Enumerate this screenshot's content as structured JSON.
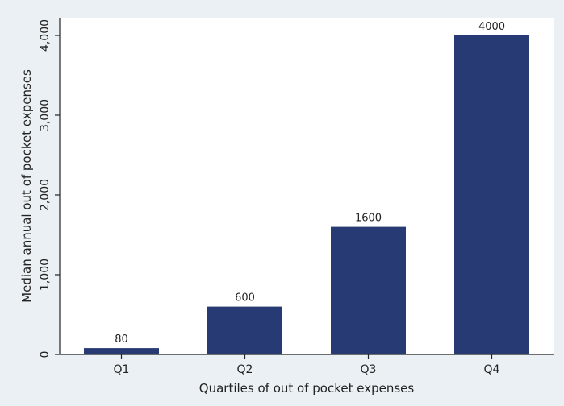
{
  "chart_data": {
    "type": "bar",
    "categories": [
      "Q1",
      "Q2",
      "Q3",
      "Q4"
    ],
    "values": [
      80,
      600,
      1600,
      4000
    ],
    "data_labels": [
      "80",
      "600",
      "1600",
      "4000"
    ],
    "xlabel": "Quartiles of out of pocket expenses",
    "ylabel": "Median annual out of pocket expenses",
    "ylim": [
      0,
      4000
    ],
    "yticks": [
      0,
      1000,
      2000,
      3000,
      4000
    ],
    "ytick_labels": [
      "0",
      "1,000",
      "2,000",
      "3,000",
      "4,000"
    ],
    "grid": false,
    "legend": false,
    "bar_color": "#283a73",
    "plot_background": "#ffffff",
    "page_background": "#eaf0f3"
  }
}
